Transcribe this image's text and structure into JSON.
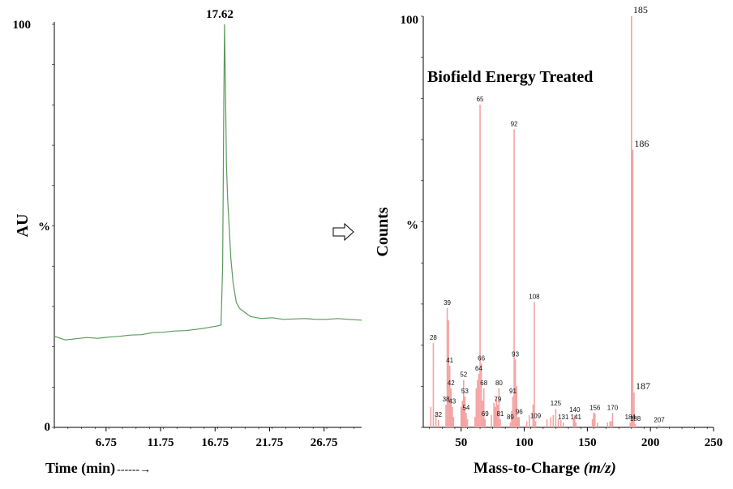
{
  "chart_data": [
    {
      "type": "line",
      "ylabel": "AU",
      "xlabel": "Time (min)",
      "xlabel_arrow": "------→",
      "y_tick_labels": [
        "0",
        "%",
        "100"
      ],
      "x_ticks": [
        6.75,
        11.75,
        16.75,
        21.75,
        26.75
      ],
      "x_tick_labels": [
        "6.75",
        "11.75",
        "16.75",
        "21.75",
        "26.75"
      ],
      "xlim": [
        2.0,
        30.2
      ],
      "ylim": [
        0,
        100
      ],
      "peak_label": "17.62",
      "color": "#5a9a5a",
      "series": [
        {
          "x": [
            2.0,
            3.0,
            4.0,
            5.0,
            6.0,
            7.0,
            8.0,
            9.0,
            10.0,
            11.0,
            12.0,
            13.0,
            14.0,
            15.0,
            16.0,
            17.0,
            17.3,
            17.45,
            17.55,
            17.62,
            17.7,
            17.8,
            17.9,
            18.0,
            18.2,
            18.4,
            18.7,
            19.0,
            19.5,
            20.0,
            21.0,
            22.0,
            23.0,
            24.0,
            25.0,
            26.0,
            27.0,
            28.0,
            29.0,
            30.2
          ],
          "y": [
            22.6,
            21.7,
            22.0,
            22.3,
            22.1,
            22.4,
            22.6,
            22.9,
            23.0,
            23.5,
            23.6,
            23.9,
            24.0,
            24.3,
            24.7,
            25.2,
            25.4,
            40.0,
            80.0,
            100.0,
            85.0,
            65.0,
            57.0,
            52.0,
            42.0,
            36.0,
            31.0,
            29.5,
            28.5,
            27.5,
            27.0,
            27.2,
            26.8,
            26.9,
            27.0,
            26.8,
            26.8,
            27.0,
            26.8,
            26.6
          ]
        }
      ]
    },
    {
      "type": "bar",
      "title": "Biofield Energy Treated",
      "ylabel": "Counts",
      "xlabel": "Mass-to-Charge",
      "xlabel_italic": "(m/z)",
      "y_tick_labels": [
        "%",
        "100"
      ],
      "x_ticks": [
        50,
        100,
        150,
        200,
        250
      ],
      "x_tick_labels": [
        "50",
        "100",
        "150",
        "200",
        "250"
      ],
      "xlim": [
        20,
        250
      ],
      "ylim": [
        0,
        100
      ],
      "color": "#f4a3a3",
      "peaks": [
        {
          "x": 26,
          "y": 5,
          "label": ""
        },
        {
          "x": 28,
          "y": 20.5,
          "label": "28"
        },
        {
          "x": 30,
          "y": 3.5,
          "label": ""
        },
        {
          "x": 32,
          "y": 1.8,
          "label": "32"
        },
        {
          "x": 38,
          "y": 5.5,
          "label": "38"
        },
        {
          "x": 39,
          "y": 29,
          "label": "39"
        },
        {
          "x": 40,
          "y": 26,
          "label": ""
        },
        {
          "x": 41,
          "y": 15,
          "label": "41"
        },
        {
          "x": 42,
          "y": 9.5,
          "label": "42"
        },
        {
          "x": 43,
          "y": 5,
          "label": "43"
        },
        {
          "x": 44,
          "y": 2.5,
          "label": ""
        },
        {
          "x": 50,
          "y": 5,
          "label": ""
        },
        {
          "x": 51,
          "y": 6.5,
          "label": ""
        },
        {
          "x": 52,
          "y": 11.5,
          "label": "52"
        },
        {
          "x": 53,
          "y": 7.5,
          "label": "53"
        },
        {
          "x": 54,
          "y": 3.5,
          "label": "54"
        },
        {
          "x": 55,
          "y": 2,
          "label": ""
        },
        {
          "x": 61,
          "y": 2.5,
          "label": ""
        },
        {
          "x": 62,
          "y": 9.5,
          "label": ""
        },
        {
          "x": 63,
          "y": 11.5,
          "label": ""
        },
        {
          "x": 64,
          "y": 13,
          "label": "64"
        },
        {
          "x": 65,
          "y": 78.5,
          "label": "65"
        },
        {
          "x": 66,
          "y": 15.5,
          "label": "66"
        },
        {
          "x": 67,
          "y": 6.5,
          "label": ""
        },
        {
          "x": 68,
          "y": 9.5,
          "label": "68"
        },
        {
          "x": 69,
          "y": 2,
          "label": "69"
        },
        {
          "x": 74,
          "y": 3,
          "label": ""
        },
        {
          "x": 76,
          "y": 6,
          "label": ""
        },
        {
          "x": 77,
          "y": 5,
          "label": ""
        },
        {
          "x": 78,
          "y": 7,
          "label": ""
        },
        {
          "x": 79,
          "y": 5.5,
          "label": "79"
        },
        {
          "x": 80,
          "y": 9.5,
          "label": "80"
        },
        {
          "x": 81,
          "y": 2,
          "label": "81"
        },
        {
          "x": 89,
          "y": 1.2,
          "label": "89"
        },
        {
          "x": 90,
          "y": 4,
          "label": ""
        },
        {
          "x": 91,
          "y": 7.5,
          "label": "91"
        },
        {
          "x": 92,
          "y": 72.5,
          "label": "92"
        },
        {
          "x": 93,
          "y": 16.5,
          "label": "93"
        },
        {
          "x": 94,
          "y": 10,
          "label": ""
        },
        {
          "x": 95,
          "y": 2.5,
          "label": ""
        },
        {
          "x": 96,
          "y": 2.5,
          "label": "96"
        },
        {
          "x": 102,
          "y": 1.5,
          "label": ""
        },
        {
          "x": 104,
          "y": 3,
          "label": ""
        },
        {
          "x": 107,
          "y": 5.5,
          "label": ""
        },
        {
          "x": 108,
          "y": 30.5,
          "label": "108"
        },
        {
          "x": 109,
          "y": 1.5,
          "label": "109"
        },
        {
          "x": 118,
          "y": 2,
          "label": ""
        },
        {
          "x": 121,
          "y": 2.5,
          "label": ""
        },
        {
          "x": 123,
          "y": 3,
          "label": ""
        },
        {
          "x": 125,
          "y": 4.5,
          "label": "125"
        },
        {
          "x": 127,
          "y": 2,
          "label": ""
        },
        {
          "x": 129,
          "y": 1.8,
          "label": ""
        },
        {
          "x": 131,
          "y": 1.2,
          "label": "131"
        },
        {
          "x": 139,
          "y": 2,
          "label": ""
        },
        {
          "x": 140,
          "y": 3,
          "label": "140"
        },
        {
          "x": 141,
          "y": 1.2,
          "label": "141"
        },
        {
          "x": 154,
          "y": 2,
          "label": ""
        },
        {
          "x": 155,
          "y": 3.5,
          "label": ""
        },
        {
          "x": 156,
          "y": 3.5,
          "label": "156"
        },
        {
          "x": 158,
          "y": 1.2,
          "label": ""
        },
        {
          "x": 166,
          "y": 1.2,
          "label": ""
        },
        {
          "x": 168,
          "y": 1.5,
          "label": ""
        },
        {
          "x": 169,
          "y": 1.5,
          "label": ""
        },
        {
          "x": 170,
          "y": 3.5,
          "label": "170"
        },
        {
          "x": 184,
          "y": 1.2,
          "label": "184"
        },
        {
          "x": 185,
          "y": 100,
          "label": "185"
        },
        {
          "x": 186,
          "y": 67.5,
          "label": "186"
        },
        {
          "x": 187,
          "y": 8.5,
          "label": "187"
        },
        {
          "x": 188,
          "y": 0.8,
          "label": "188"
        },
        {
          "x": 207,
          "y": 0.5,
          "label": "207"
        }
      ]
    }
  ],
  "arrow_icon": "hollow-right-arrow-icon"
}
